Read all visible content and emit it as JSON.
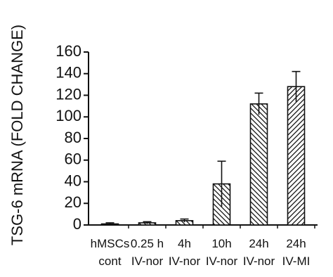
{
  "chart_data": {
    "type": "bar",
    "title": "",
    "xlabel": "",
    "ylabel": "TSG-6 mRNA (FOLD CHANGE)",
    "ylim": [
      0,
      160
    ],
    "yticks": [
      0,
      20,
      40,
      60,
      80,
      100,
      120,
      140,
      160
    ],
    "grid": false,
    "categories": [
      {
        "line1": "hMSCs",
        "line2": "cont"
      },
      {
        "line1": "0.25 h",
        "line2": "IV-nor"
      },
      {
        "line1": "4h",
        "line2": "IV-nor"
      },
      {
        "line1": "10h",
        "line2": "IV-nor"
      },
      {
        "line1": "24h",
        "line2": "IV-nor"
      },
      {
        "line1": "24h",
        "line2": "IV-MI"
      }
    ],
    "values": [
      1,
      2,
      4,
      38,
      112,
      128
    ],
    "errors": [
      1,
      1,
      1.5,
      21,
      10,
      14
    ],
    "patterns": [
      "backslash",
      "backslash",
      "backslash",
      "backslash",
      "backslash",
      "slash"
    ],
    "colors": {
      "ink": "#111111",
      "bar_fill": "#ffffff"
    }
  }
}
